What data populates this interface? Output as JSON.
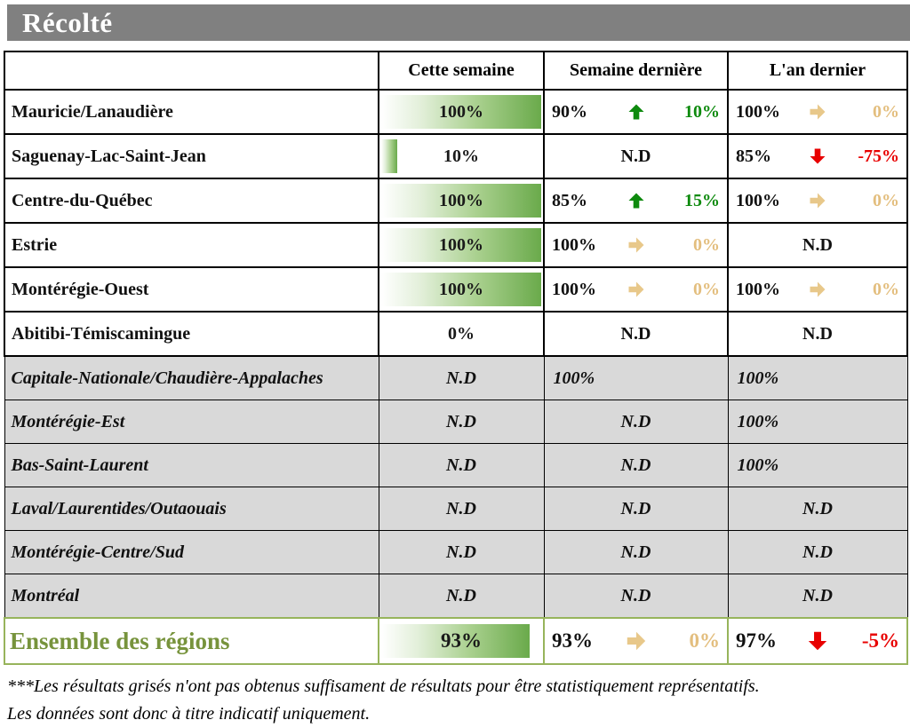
{
  "title": "Récolté",
  "header": {
    "region": "",
    "this_week": "Cette semaine",
    "last_week": "Semaine dernière",
    "last_year": "L'an dernier"
  },
  "rows": [
    {
      "region": "Mauricie/Lanaudière",
      "this_week": {
        "value": "100%",
        "bar": 100
      },
      "last_week": {
        "value": "90%",
        "arrow": "up",
        "change": "10%"
      },
      "last_year": {
        "value": "100%",
        "arrow": "right",
        "change": "0%"
      }
    },
    {
      "region": "Saguenay-Lac-Saint-Jean",
      "this_week": {
        "value": "10%",
        "bar": 10
      },
      "last_week": {
        "value": "N.D"
      },
      "last_year": {
        "value": "85%",
        "arrow": "down",
        "change": "-75%"
      }
    },
    {
      "region": "Centre-du-Québec",
      "this_week": {
        "value": "100%",
        "bar": 100
      },
      "last_week": {
        "value": "85%",
        "arrow": "up",
        "change": "15%"
      },
      "last_year": {
        "value": "100%",
        "arrow": "right",
        "change": "0%"
      }
    },
    {
      "region": "Estrie",
      "this_week": {
        "value": "100%",
        "bar": 100
      },
      "last_week": {
        "value": "100%",
        "arrow": "right",
        "change": "0%"
      },
      "last_year": {
        "value": "N.D"
      }
    },
    {
      "region": "Montérégie-Ouest",
      "this_week": {
        "value": "100%",
        "bar": 100
      },
      "last_week": {
        "value": "100%",
        "arrow": "right",
        "change": "0%"
      },
      "last_year": {
        "value": "100%",
        "arrow": "right",
        "change": "0%"
      }
    },
    {
      "region": "Abitibi-Témiscamingue",
      "this_week": {
        "value": "0%",
        "bar": 0
      },
      "last_week": {
        "value": "N.D"
      },
      "last_year": {
        "value": "N.D"
      }
    },
    {
      "region": "Capitale-Nationale/Chaudière-Appalaches",
      "grayed": true,
      "this_week": {
        "value": "N.D"
      },
      "last_week": {
        "value": "100%"
      },
      "last_year": {
        "value": "100%"
      }
    },
    {
      "region": "Montérégie-Est",
      "grayed": true,
      "this_week": {
        "value": "N.D"
      },
      "last_week": {
        "value": "N.D"
      },
      "last_year": {
        "value": "100%"
      }
    },
    {
      "region": "Bas-Saint-Laurent",
      "grayed": true,
      "this_week": {
        "value": "N.D"
      },
      "last_week": {
        "value": "N.D"
      },
      "last_year": {
        "value": "100%"
      }
    },
    {
      "region": "Laval/Laurentides/Outaouais",
      "grayed": true,
      "this_week": {
        "value": "N.D"
      },
      "last_week": {
        "value": "N.D"
      },
      "last_year": {
        "value": "N.D"
      }
    },
    {
      "region": "Montérégie-Centre/Sud",
      "grayed": true,
      "this_week": {
        "value": "N.D"
      },
      "last_week": {
        "value": "N.D"
      },
      "last_year": {
        "value": "N.D"
      }
    },
    {
      "region": "Montréal",
      "grayed": true,
      "this_week": {
        "value": "N.D"
      },
      "last_week": {
        "value": "N.D"
      },
      "last_year": {
        "value": "N.D"
      }
    }
  ],
  "total": {
    "region": "Ensemble des régions",
    "this_week": {
      "value": "93%",
      "bar": 93
    },
    "last_week": {
      "value": "93%",
      "arrow": "right",
      "change": "0%"
    },
    "last_year": {
      "value": "97%",
      "arrow": "down",
      "change": "-5%"
    }
  },
  "footnotes": [
    "***Les résultats grisés n'ont pas obtenus suffisament de résultats pour être statistiquement représentatifs.",
    "Les données sont donc à titre indicatif uniquement."
  ],
  "colors": {
    "banner_gray": "#808080",
    "bar_green": "#6AAA4B",
    "up_green": "#0E8A0E",
    "flat_tan": "#E8C88A",
    "down_red": "#E80000",
    "grayed_bg": "#D9D9D9",
    "total_green": "#77933C"
  }
}
